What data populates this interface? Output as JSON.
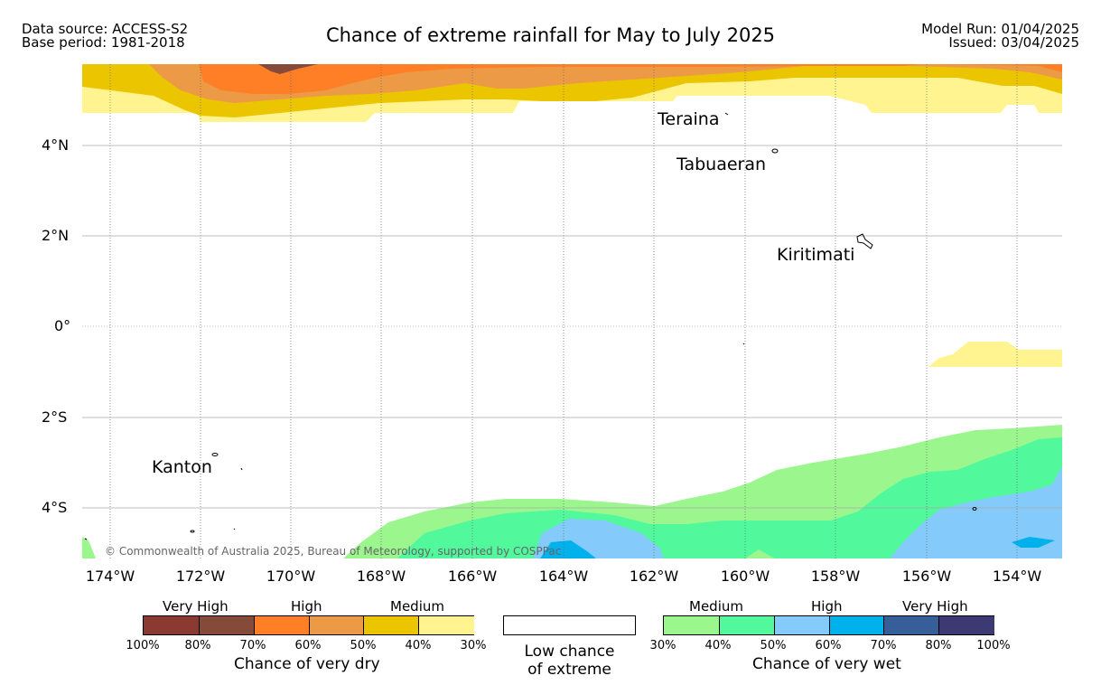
{
  "header": {
    "data_source": "Data source: ACCESS-S2",
    "base_period": "Base period: 1981-2018",
    "title": "Chance of extreme rainfall for May to July 2025",
    "model_run": "Model Run: 01/04/2025",
    "issued": "Issued: 03/04/2025"
  },
  "map": {
    "lat_ticks": [
      "4°N",
      "2°N",
      "0°",
      "2°S",
      "4°S"
    ],
    "lon_ticks": [
      "174°W",
      "172°W",
      "170°W",
      "168°W",
      "166°W",
      "164°W",
      "162°W",
      "160°W",
      "158°W",
      "156°W",
      "154°W"
    ],
    "places": [
      "Teraina",
      "Tabuaeran",
      "Kiritimati",
      "Kanton"
    ],
    "copyright": "© Commonwealth of Australia 2025, Bureau of Meteorology, supported by COSPPac"
  },
  "legend": {
    "dry": {
      "levels": [
        "Very High",
        "High",
        "Medium"
      ],
      "percents": [
        "100%",
        "80%",
        "70%",
        "60%",
        "50%",
        "40%",
        "30%"
      ],
      "colors": [
        "#8b3a32",
        "#854a3a",
        "#ff7f27",
        "#ec9a45",
        "#ebc600",
        "#fff48f"
      ],
      "title": "Chance of very dry"
    },
    "neutral": {
      "line1": "Low chance",
      "line2": "of extreme"
    },
    "wet": {
      "levels": [
        "Medium",
        "High",
        "Very High"
      ],
      "percents": [
        "30%",
        "40%",
        "50%",
        "60%",
        "70%",
        "80%",
        "100%"
      ],
      "colors": [
        "#9bf68e",
        "#51f89c",
        "#84cbfb",
        "#00b1ec",
        "#365f9a",
        "#3d3a73"
      ],
      "title": "Chance of very wet"
    }
  }
}
